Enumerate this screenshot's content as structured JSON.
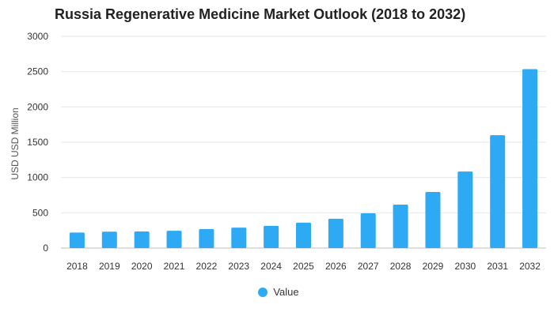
{
  "chart_data": {
    "type": "bar",
    "title": "Russia Regenerative Medicine Market Outlook (2018 to 2032)",
    "xlabel": "",
    "ylabel": "USD USD Million",
    "ylim": [
      0,
      3000
    ],
    "yticks": [
      0,
      500,
      1000,
      1500,
      2000,
      2500,
      3000
    ],
    "grid": true,
    "legend_position": "bottom-center",
    "categories": [
      "2018",
      "2019",
      "2020",
      "2021",
      "2022",
      "2023",
      "2024",
      "2025",
      "2026",
      "2027",
      "2028",
      "2029",
      "2030",
      "2031",
      "2032"
    ],
    "series": [
      {
        "name": "Value",
        "color": "#2eaaf5",
        "values": [
          220,
          232,
          235,
          245,
          268,
          290,
          315,
          360,
          415,
          492,
          615,
          795,
          1085,
          1600,
          2535
        ]
      }
    ]
  }
}
